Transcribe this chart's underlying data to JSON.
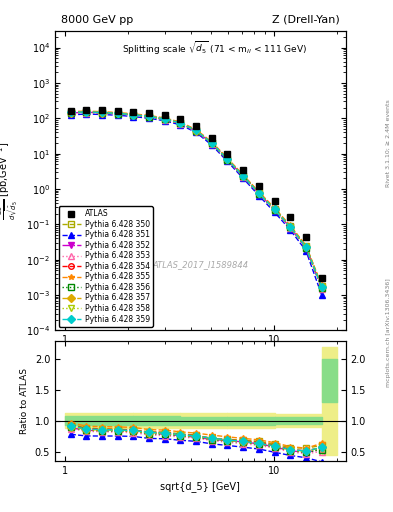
{
  "title_left": "8000 GeV pp",
  "title_right": "Z (Drell-Yan)",
  "main_title": "Splitting scale $\\sqrt{d_5}$ (71 < m$_{ll}$ < 111 GeV)",
  "ylabel_main": "d$\\sigma$/dsqrt($\\overline{d}_5$) [pb,GeV$^{-1}$]",
  "ylabel_ratio": "Ratio to ATLAS",
  "xlabel": "sqrt{d_5} [GeV]",
  "watermark": "ATLAS_2017_I1589844",
  "right_label": "Rivet 3.1.10; ≥ 2.4M events",
  "arxiv_label": "mcplots.cern.ch [arXiv:1306.3436]",
  "x_data": [
    1.07,
    1.27,
    1.51,
    1.79,
    2.13,
    2.53,
    3.01,
    3.57,
    4.24,
    5.04,
    5.99,
    7.12,
    8.46,
    10.05,
    11.94,
    14.19,
    16.87
  ],
  "atlas_y": [
    160.0,
    175.0,
    170.0,
    162.0,
    150.0,
    140.0,
    120.0,
    95.0,
    60.0,
    28.0,
    10.0,
    3.5,
    1.2,
    0.45,
    0.16,
    0.045,
    0.003
  ],
  "atlas_yerr_lo": [
    8.0,
    7.0,
    7.0,
    6.5,
    6.0,
    5.5,
    5.0,
    4.0,
    2.5,
    1.2,
    0.45,
    0.16,
    0.06,
    0.022,
    0.008,
    0.002,
    0.0003
  ],
  "atlas_yerr_hi": [
    8.0,
    7.0,
    7.0,
    6.5,
    6.0,
    5.5,
    5.0,
    4.0,
    2.5,
    1.2,
    0.45,
    0.16,
    0.06,
    0.022,
    0.008,
    0.002,
    0.0003
  ],
  "series": [
    {
      "label": "Pythia 6.428 350",
      "color": "#aaaa00",
      "marker": "s",
      "fillstyle": "none",
      "linestyle": "--",
      "y": [
        150.0,
        155.0,
        148.0,
        140.0,
        128.0,
        115.0,
        98.0,
        75.0,
        46.0,
        20.0,
        7.0,
        2.4,
        0.8,
        0.28,
        0.09,
        0.025,
        0.0018
      ]
    },
    {
      "label": "Pythia 6.428 351",
      "color": "#0000ff",
      "marker": "^",
      "fillstyle": "full",
      "linestyle": "--",
      "y": [
        125.0,
        132.0,
        128.0,
        122.0,
        112.0,
        100.0,
        85.0,
        65.0,
        40.0,
        17.5,
        6.0,
        2.0,
        0.65,
        0.22,
        0.07,
        0.018,
        0.001
      ]
    },
    {
      "label": "Pythia 6.428 352",
      "color": "#cc00cc",
      "marker": "v",
      "fillstyle": "full",
      "linestyle": "-.",
      "y": [
        142.0,
        148.0,
        143.0,
        135.0,
        124.0,
        111.0,
        94.0,
        72.0,
        44.0,
        19.5,
        6.8,
        2.3,
        0.75,
        0.26,
        0.082,
        0.022,
        0.0016
      ]
    },
    {
      "label": "Pythia 6.428 353",
      "color": "#ff66aa",
      "marker": "^",
      "fillstyle": "none",
      "linestyle": ":",
      "y": [
        140.0,
        145.0,
        140.0,
        132.0,
        121.0,
        108.0,
        91.0,
        70.0,
        43.0,
        19.0,
        6.5,
        2.2,
        0.72,
        0.25,
        0.079,
        0.021,
        0.0015
      ]
    },
    {
      "label": "Pythia 6.428 354",
      "color": "#ff0000",
      "marker": "o",
      "fillstyle": "none",
      "linestyle": "--",
      "y": [
        148.0,
        153.0,
        147.0,
        139.0,
        127.0,
        114.0,
        97.0,
        74.0,
        45.5,
        20.0,
        6.9,
        2.35,
        0.78,
        0.27,
        0.086,
        0.023,
        0.0017
      ]
    },
    {
      "label": "Pythia 6.428 355",
      "color": "#ff8800",
      "marker": "*",
      "fillstyle": "full",
      "linestyle": "--",
      "y": [
        155.0,
        160.0,
        154.0,
        146.0,
        134.0,
        120.0,
        102.0,
        78.0,
        48.0,
        21.5,
        7.4,
        2.5,
        0.83,
        0.29,
        0.093,
        0.025,
        0.0019
      ]
    },
    {
      "label": "Pythia 6.428 356",
      "color": "#008800",
      "marker": "s",
      "fillstyle": "none",
      "linestyle": ":",
      "y": [
        143.0,
        148.0,
        143.0,
        135.0,
        124.0,
        111.0,
        94.0,
        72.0,
        44.0,
        19.5,
        6.7,
        2.28,
        0.74,
        0.26,
        0.082,
        0.022,
        0.0016
      ]
    },
    {
      "label": "Pythia 6.428 357",
      "color": "#ddaa00",
      "marker": "D",
      "fillstyle": "full",
      "linestyle": "--",
      "y": [
        145.0,
        150.0,
        145.0,
        137.0,
        126.0,
        113.0,
        96.0,
        73.5,
        45.0,
        20.0,
        6.85,
        2.32,
        0.76,
        0.265,
        0.084,
        0.023,
        0.0017
      ]
    },
    {
      "label": "Pythia 6.428 358",
      "color": "#aacc00",
      "marker": "v",
      "fillstyle": "none",
      "linestyle": ":",
      "y": [
        144.0,
        149.0,
        144.0,
        136.0,
        125.0,
        112.0,
        95.0,
        72.5,
        44.5,
        19.8,
        6.78,
        2.3,
        0.75,
        0.262,
        0.083,
        0.0225,
        0.00165
      ]
    },
    {
      "label": "Pythia 6.428 359",
      "color": "#00cccc",
      "marker": "D",
      "fillstyle": "full",
      "linestyle": "--",
      "y": [
        147.0,
        152.0,
        146.0,
        138.0,
        126.5,
        113.5,
        96.5,
        73.8,
        45.2,
        20.1,
        6.9,
        2.33,
        0.76,
        0.267,
        0.085,
        0.023,
        0.0017
      ]
    }
  ],
  "ratio_uncertainty_green": {
    "x_edges": [
      1.0,
      2.13,
      3.57,
      5.99,
      10.05,
      16.87,
      20.0
    ],
    "y_lo": [
      0.93,
      0.93,
      0.94,
      0.94,
      0.95,
      1.3
    ],
    "y_hi": [
      1.08,
      1.08,
      1.07,
      1.07,
      1.06,
      2.0
    ]
  },
  "ratio_uncertainty_yellow": {
    "x_edges": [
      1.0,
      2.13,
      3.57,
      5.99,
      10.05,
      16.87,
      20.0
    ],
    "y_lo": [
      0.88,
      0.88,
      0.89,
      0.89,
      0.9,
      0.45
    ],
    "y_hi": [
      1.13,
      1.13,
      1.12,
      1.12,
      1.11,
      2.2
    ]
  },
  "xlim": [
    0.9,
    22.0
  ],
  "ylim_main": [
    0.0001,
    30000.0
  ],
  "ylim_ratio": [
    0.35,
    2.3
  ],
  "ratio_yticks": [
    0.5,
    1.0,
    1.5,
    2.0
  ]
}
